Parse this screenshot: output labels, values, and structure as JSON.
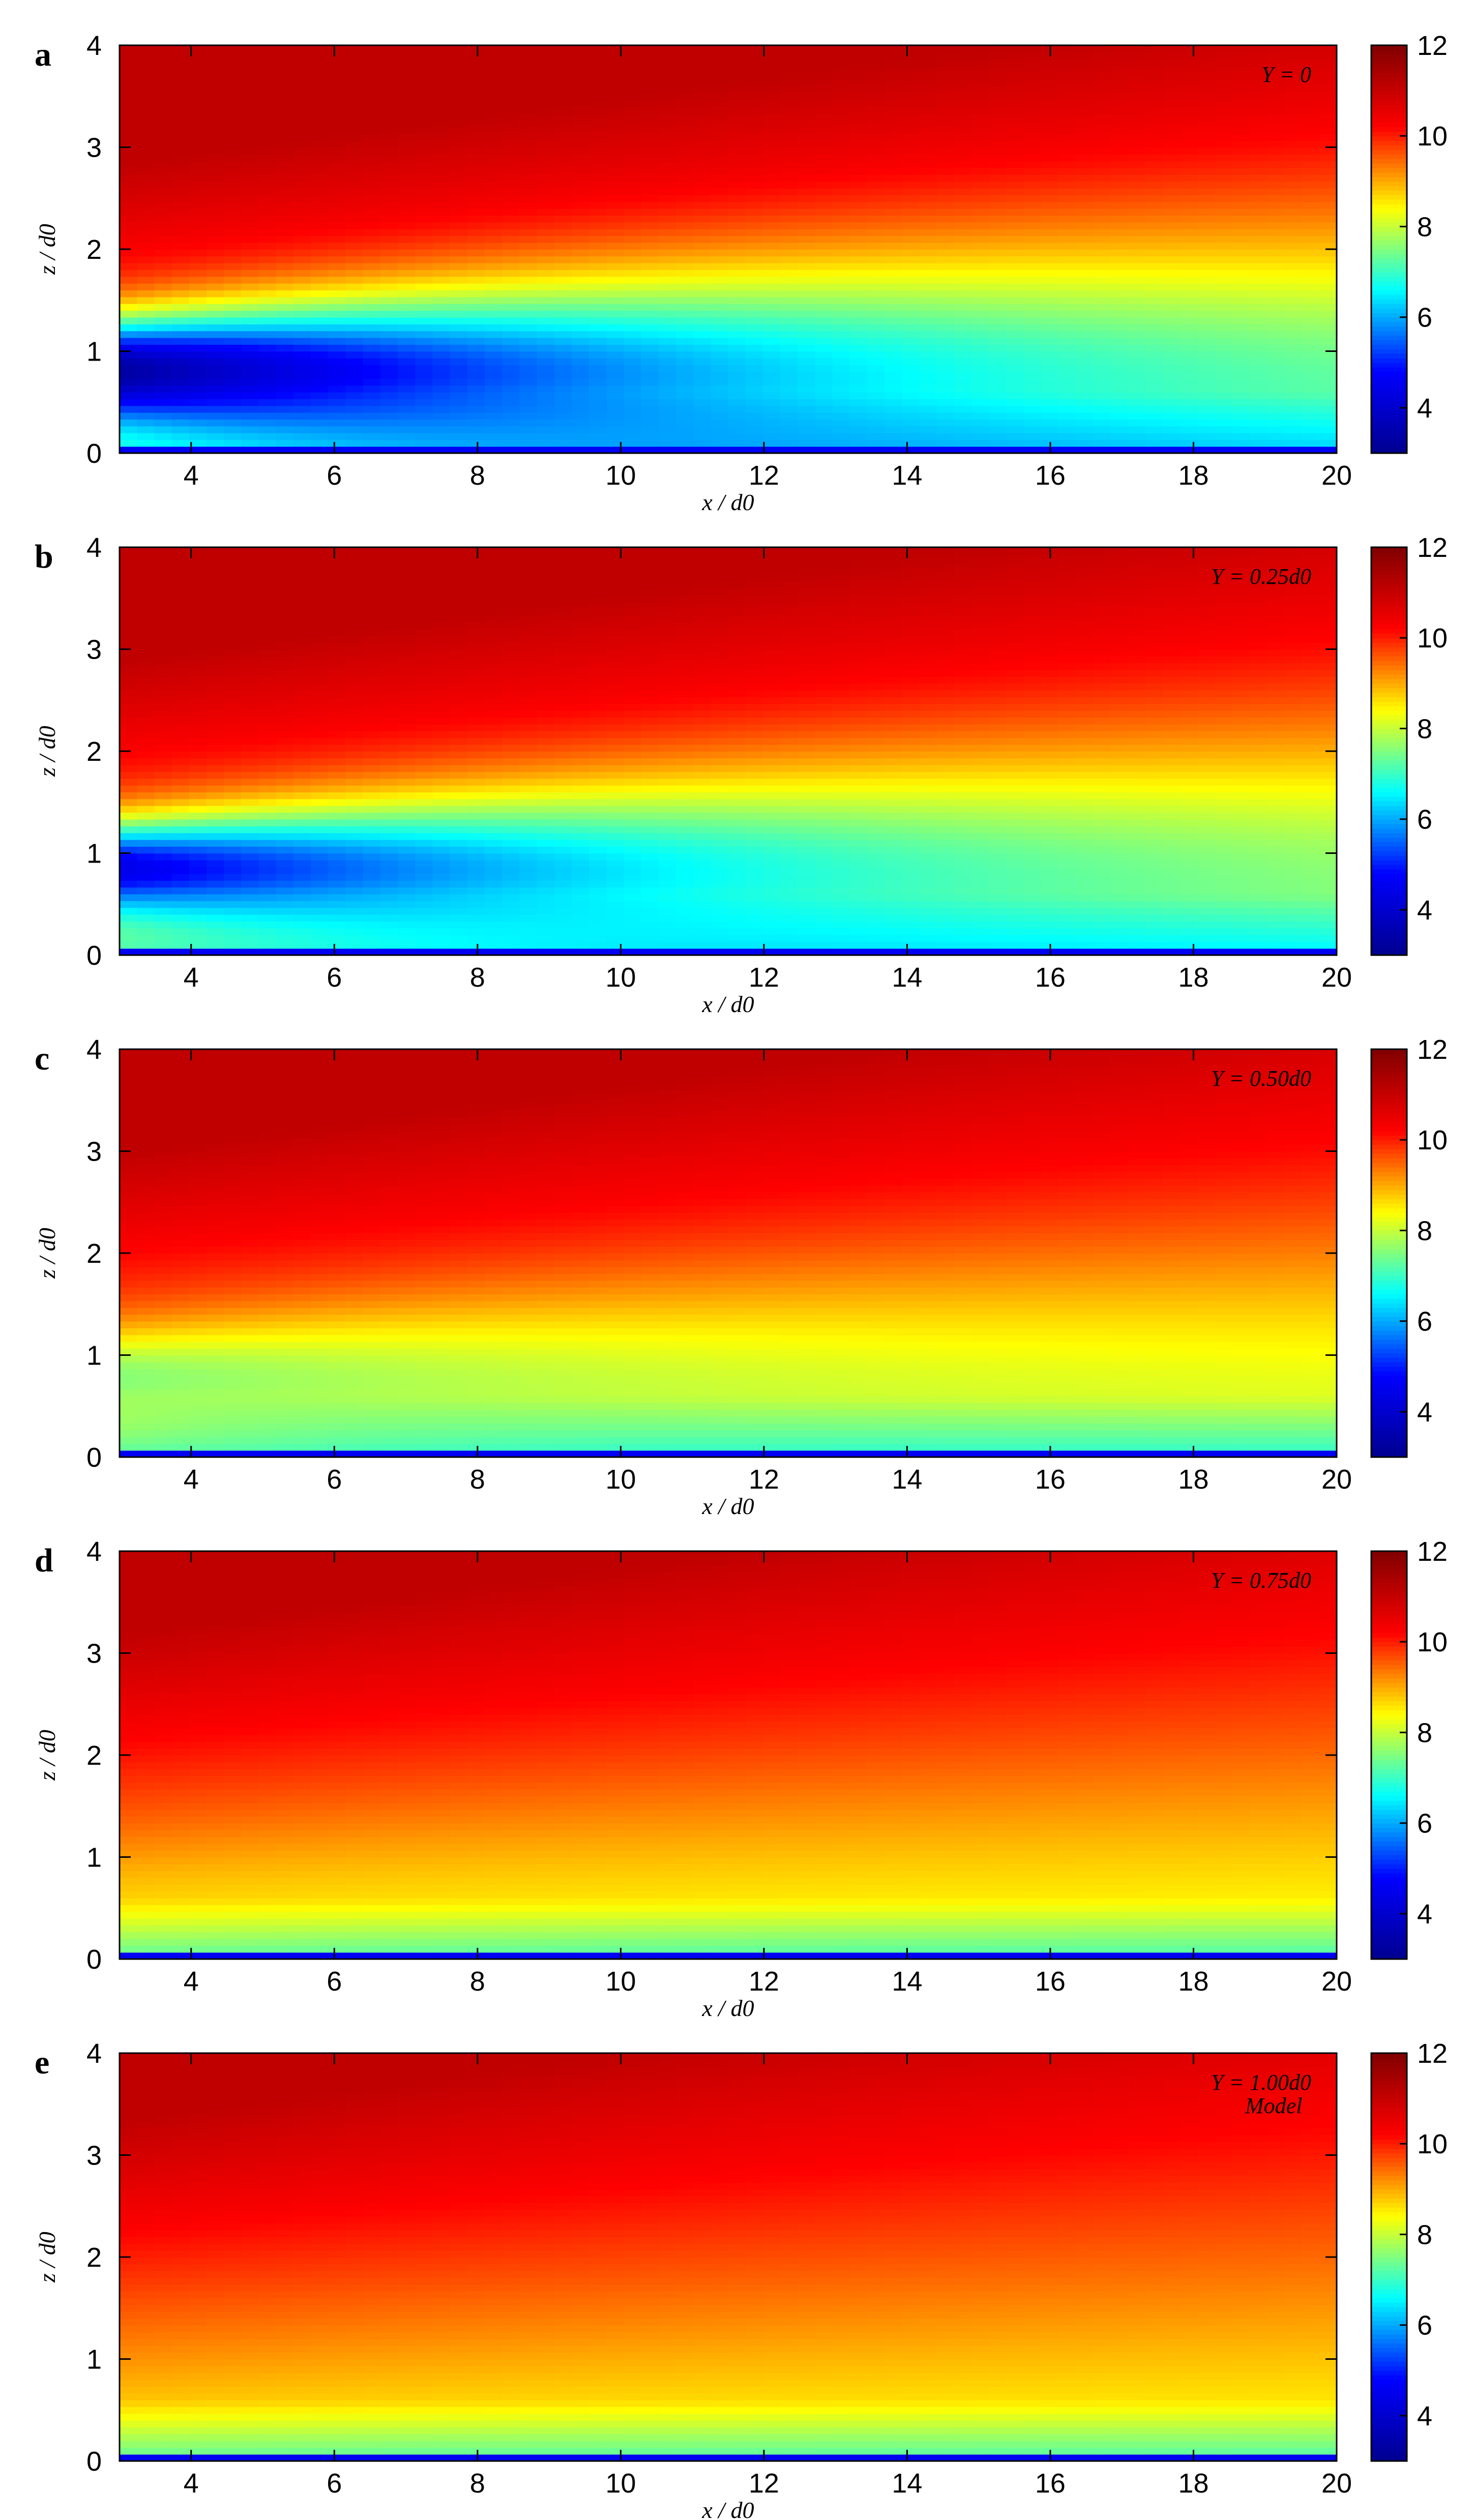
{
  "chart_data": {
    "type": "heatmap",
    "colormap": "jet",
    "colors": {
      "jet": [
        "#00008f",
        "#0000ff",
        "#00ffff",
        "#ffff00",
        "#ff0000",
        "#800000"
      ]
    },
    "panels": [
      {
        "letter": "a",
        "annotation": "Y = 0",
        "annotation_2": "",
        "xlabel": "x / d0",
        "ylabel": "z / d0",
        "xlim": [
          3,
          20
        ],
        "ylim": [
          0,
          4
        ],
        "xticks": [
          4,
          6,
          8,
          10,
          12,
          14,
          16,
          18,
          20
        ],
        "yticks": [
          0,
          1,
          2,
          3,
          4
        ],
        "clim": [
          3,
          12
        ],
        "cticks": [
          4,
          6,
          8,
          10,
          12
        ],
        "wake": {
          "center": 0.8,
          "min_value": 3.3,
          "width": 0.5,
          "strength": 1.0,
          "top_shift": 0.0
        }
      },
      {
        "letter": "b",
        "annotation": "Y = 0.25d0",
        "annotation_2": "",
        "xlabel": "x / d0",
        "ylabel": "z / d0",
        "xlim": [
          3,
          20
        ],
        "ylim": [
          0,
          4
        ],
        "xticks": [
          4,
          6,
          8,
          10,
          12,
          14,
          16,
          18,
          20
        ],
        "yticks": [
          0,
          1,
          2,
          3,
          4
        ],
        "clim": [
          3,
          12
        ],
        "cticks": [
          4,
          6,
          8,
          10,
          12
        ],
        "wake": {
          "center": 0.85,
          "min_value": 3.6,
          "width": 0.45,
          "strength": 0.85,
          "top_shift": 0.05
        }
      },
      {
        "letter": "c",
        "annotation": "Y = 0.50d0",
        "annotation_2": "",
        "xlabel": "x / d0",
        "ylabel": "z / d0",
        "xlim": [
          3,
          20
        ],
        "ylim": [
          0,
          4
        ],
        "xticks": [
          4,
          6,
          8,
          10,
          12,
          14,
          16,
          18,
          20
        ],
        "yticks": [
          0,
          1,
          2,
          3,
          4
        ],
        "clim": [
          3,
          12
        ],
        "cticks": [
          4,
          6,
          8,
          10,
          12
        ],
        "wake": {
          "center": 0.8,
          "min_value": 6.3,
          "width": 0.45,
          "strength": 0.55,
          "top_shift": 0.15
        }
      },
      {
        "letter": "d",
        "annotation": "Y = 0.75d0",
        "annotation_2": "",
        "xlabel": "x / d0",
        "ylabel": "z / d0",
        "xlim": [
          3,
          20
        ],
        "ylim": [
          0,
          4
        ],
        "xticks": [
          4,
          6,
          8,
          10,
          12,
          14,
          16,
          18,
          20
        ],
        "yticks": [
          0,
          1,
          2,
          3,
          4
        ],
        "clim": [
          3,
          12
        ],
        "cticks": [
          4,
          6,
          8,
          10,
          12
        ],
        "wake": {
          "center": 0.6,
          "min_value": 8.4,
          "width": 0.45,
          "strength": 0.3,
          "top_shift": 0.35
        }
      },
      {
        "letter": "e",
        "annotation": "Y = 1.00d0",
        "annotation_2": "Model",
        "xlabel": "x / d0",
        "ylabel": "z / d0",
        "xlim": [
          3,
          20
        ],
        "ylim": [
          0,
          4
        ],
        "xticks": [
          4,
          6,
          8,
          10,
          12,
          14,
          16,
          18,
          20
        ],
        "yticks": [
          0,
          1,
          2,
          3,
          4
        ],
        "clim": [
          3,
          12
        ],
        "cticks": [
          4,
          6,
          8,
          10,
          12
        ],
        "wake": {
          "center": 0.4,
          "min_value": 8.6,
          "width": 0.35,
          "strength": 0.2,
          "top_shift": 0.5
        }
      }
    ]
  }
}
